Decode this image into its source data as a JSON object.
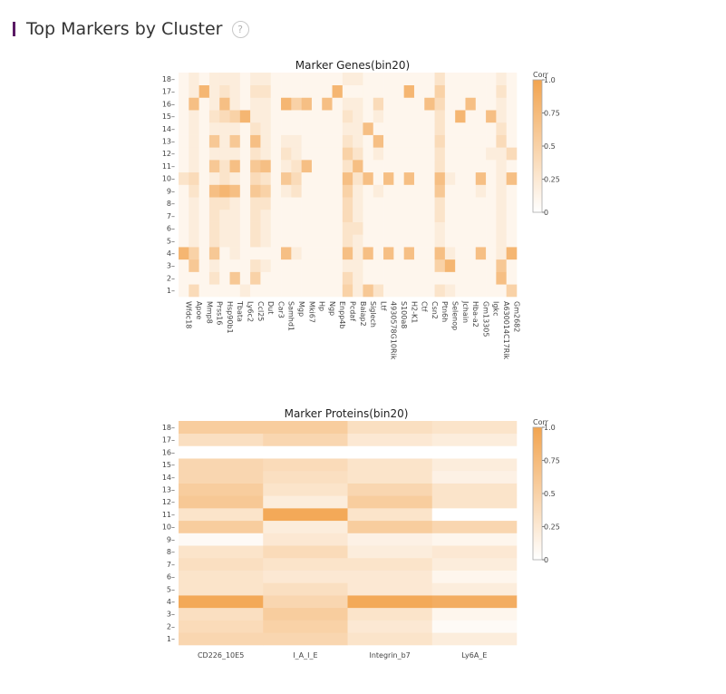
{
  "header": {
    "title": "Top Markers by Cluster",
    "help_glyph": "?"
  },
  "colors": {
    "low": "#ffffff",
    "high": "#f2a44f",
    "accent_bar": "#5a1a64"
  },
  "chart_data": [
    {
      "type": "heatmap",
      "title": "Marker Genes(bin20)",
      "colorbar_title": "Corr",
      "colorbar_ticks": [
        "0",
        "0.25",
        "0.5",
        "0.75",
        "1.0"
      ],
      "zrange": [
        0,
        1
      ],
      "y": [
        "1",
        "2",
        "3",
        "4",
        "5",
        "6",
        "7",
        "8",
        "9",
        "10",
        "11",
        "12",
        "13",
        "14",
        "15",
        "16",
        "17",
        "18"
      ],
      "x": [
        "Wfdc18",
        "Apoe",
        "Mmp8",
        "Prss16",
        "Hsp90b1",
        "Tbata",
        "Ly6c2",
        "Ccl25",
        "Dut",
        "Car3",
        "Samhd1",
        "Mgp",
        "Mki67",
        "Hp",
        "Ngp",
        "Enpp4b",
        "Pcdaf",
        "Baiap2",
        "Siglech",
        "Ltf",
        "4930578G10Rik",
        "S100a8",
        "H2-K1",
        "Ctf",
        "Csn2",
        "Ptn6h",
        "Selenop",
        "Jchain",
        "Hba-a2",
        "Gm13305",
        "Igkc",
        "A630014C17Rik",
        "Gm2682"
      ],
      "z": [
        [
          0.1,
          0.4,
          0.1,
          0.1,
          0.1,
          0.1,
          0.2,
          0.1,
          0.1,
          0.1,
          0.1,
          0.1,
          0.1,
          0.1,
          0.1,
          0.1,
          0.5,
          0.2,
          0.6,
          0.3,
          0.1,
          0.1,
          0.1,
          0.1,
          0.1,
          0.3,
          0.2,
          0.1,
          0.1,
          0.1,
          0.1,
          0.1,
          0.5
        ],
        [
          0.1,
          0.1,
          0.1,
          0.3,
          0.1,
          0.6,
          0.1,
          0.5,
          0.1,
          0.1,
          0.1,
          0.1,
          0.1,
          0.1,
          0.1,
          0.1,
          0.4,
          0.2,
          0.1,
          0.1,
          0.1,
          0.1,
          0.1,
          0.1,
          0.1,
          0.1,
          0.1,
          0.1,
          0.1,
          0.1,
          0.1,
          0.7,
          0.1
        ],
        [
          0.1,
          0.6,
          0.1,
          0.2,
          0.1,
          0.1,
          0.1,
          0.3,
          0.2,
          0.1,
          0.1,
          0.1,
          0.1,
          0.1,
          0.1,
          0.1,
          0.2,
          0.2,
          0.1,
          0.1,
          0.1,
          0.1,
          0.1,
          0.1,
          0.1,
          0.5,
          0.8,
          0.1,
          0.1,
          0.1,
          0.1,
          0.6,
          0.1
        ],
        [
          0.8,
          0.5,
          0.1,
          0.6,
          0.1,
          0.2,
          0.1,
          0.1,
          0.1,
          0.1,
          0.7,
          0.2,
          0.1,
          0.1,
          0.1,
          0.1,
          0.7,
          0.2,
          0.7,
          0.1,
          0.7,
          0.1,
          0.7,
          0.1,
          0.1,
          0.7,
          0.2,
          0.1,
          0.1,
          0.7,
          0.1,
          0.2,
          0.8
        ],
        [
          0.1,
          0.2,
          0.1,
          0.3,
          0.2,
          0.2,
          0.1,
          0.3,
          0.2,
          0.1,
          0.1,
          0.1,
          0.1,
          0.1,
          0.1,
          0.1,
          0.3,
          0.2,
          0.1,
          0.1,
          0.1,
          0.1,
          0.1,
          0.1,
          0.1,
          0.2,
          0.1,
          0.1,
          0.1,
          0.1,
          0.1,
          0.2,
          0.1
        ],
        [
          0.1,
          0.2,
          0.1,
          0.3,
          0.2,
          0.2,
          0.1,
          0.3,
          0.2,
          0.1,
          0.1,
          0.1,
          0.1,
          0.1,
          0.1,
          0.1,
          0.3,
          0.3,
          0.1,
          0.1,
          0.1,
          0.1,
          0.1,
          0.1,
          0.1,
          0.2,
          0.1,
          0.1,
          0.1,
          0.1,
          0.1,
          0.2,
          0.1
        ],
        [
          0.1,
          0.2,
          0.1,
          0.3,
          0.2,
          0.2,
          0.1,
          0.3,
          0.2,
          0.1,
          0.1,
          0.1,
          0.1,
          0.1,
          0.1,
          0.1,
          0.4,
          0.2,
          0.1,
          0.1,
          0.1,
          0.1,
          0.1,
          0.1,
          0.1,
          0.3,
          0.1,
          0.1,
          0.1,
          0.1,
          0.1,
          0.2,
          0.1
        ],
        [
          0.1,
          0.2,
          0.1,
          0.3,
          0.3,
          0.2,
          0.1,
          0.3,
          0.3,
          0.1,
          0.1,
          0.1,
          0.1,
          0.1,
          0.1,
          0.1,
          0.4,
          0.2,
          0.1,
          0.1,
          0.1,
          0.1,
          0.1,
          0.1,
          0.1,
          0.3,
          0.1,
          0.1,
          0.1,
          0.1,
          0.1,
          0.2,
          0.1
        ],
        [
          0.1,
          0.3,
          0.1,
          0.7,
          0.8,
          0.7,
          0.1,
          0.6,
          0.5,
          0.1,
          0.2,
          0.3,
          0.1,
          0.1,
          0.1,
          0.1,
          0.5,
          0.2,
          0.1,
          0.2,
          0.1,
          0.1,
          0.1,
          0.1,
          0.1,
          0.6,
          0.1,
          0.1,
          0.1,
          0.2,
          0.1,
          0.2,
          0.1
        ],
        [
          0.3,
          0.4,
          0.1,
          0.2,
          0.3,
          0.2,
          0.1,
          0.4,
          0.3,
          0.1,
          0.6,
          0.4,
          0.1,
          0.1,
          0.1,
          0.1,
          0.7,
          0.3,
          0.7,
          0.1,
          0.7,
          0.1,
          0.7,
          0.1,
          0.1,
          0.7,
          0.2,
          0.1,
          0.1,
          0.7,
          0.1,
          0.2,
          0.7
        ],
        [
          0.1,
          0.2,
          0.1,
          0.6,
          0.3,
          0.7,
          0.1,
          0.6,
          0.7,
          0.1,
          0.2,
          0.3,
          0.7,
          0.1,
          0.1,
          0.1,
          0.3,
          0.7,
          0.1,
          0.1,
          0.1,
          0.1,
          0.1,
          0.1,
          0.1,
          0.3,
          0.1,
          0.1,
          0.1,
          0.1,
          0.1,
          0.2,
          0.1
        ],
        [
          0.1,
          0.2,
          0.1,
          0.2,
          0.2,
          0.2,
          0.1,
          0.3,
          0.2,
          0.1,
          0.3,
          0.2,
          0.1,
          0.1,
          0.1,
          0.1,
          0.5,
          0.3,
          0.1,
          0.2,
          0.1,
          0.1,
          0.1,
          0.1,
          0.1,
          0.3,
          0.1,
          0.1,
          0.1,
          0.1,
          0.2,
          0.2,
          0.4
        ],
        [
          0.1,
          0.2,
          0.1,
          0.6,
          0.2,
          0.6,
          0.1,
          0.7,
          0.2,
          0.1,
          0.2,
          0.2,
          0.1,
          0.1,
          0.1,
          0.1,
          0.3,
          0.2,
          0.1,
          0.7,
          0.1,
          0.1,
          0.1,
          0.1,
          0.1,
          0.4,
          0.1,
          0.1,
          0.1,
          0.1,
          0.1,
          0.4,
          0.1
        ],
        [
          0.1,
          0.2,
          0.1,
          0.2,
          0.2,
          0.2,
          0.1,
          0.3,
          0.2,
          0.1,
          0.1,
          0.1,
          0.1,
          0.1,
          0.1,
          0.1,
          0.2,
          0.2,
          0.7,
          0.1,
          0.1,
          0.1,
          0.1,
          0.1,
          0.1,
          0.3,
          0.1,
          0.1,
          0.1,
          0.1,
          0.1,
          0.3,
          0.1
        ],
        [
          0.1,
          0.2,
          0.1,
          0.3,
          0.4,
          0.5,
          0.8,
          0.2,
          0.2,
          0.1,
          0.1,
          0.1,
          0.1,
          0.1,
          0.1,
          0.1,
          0.3,
          0.2,
          0.1,
          0.2,
          0.1,
          0.1,
          0.1,
          0.1,
          0.1,
          0.3,
          0.1,
          0.8,
          0.1,
          0.1,
          0.7,
          0.2,
          0.1
        ],
        [
          0.1,
          0.7,
          0.1,
          0.2,
          0.7,
          0.2,
          0.1,
          0.2,
          0.2,
          0.1,
          0.8,
          0.5,
          0.7,
          0.1,
          0.7,
          0.1,
          0.2,
          0.2,
          0.1,
          0.4,
          0.1,
          0.1,
          0.1,
          0.1,
          0.7,
          0.4,
          0.1,
          0.1,
          0.7,
          0.1,
          0.1,
          0.2,
          0.1
        ],
        [
          0.1,
          0.2,
          0.8,
          0.2,
          0.3,
          0.2,
          0.1,
          0.3,
          0.3,
          0.1,
          0.1,
          0.1,
          0.1,
          0.1,
          0.1,
          0.8,
          0.1,
          0.1,
          0.1,
          0.1,
          0.1,
          0.1,
          0.8,
          0.1,
          0.1,
          0.5,
          0.1,
          0.1,
          0.1,
          0.1,
          0.1,
          0.3,
          0.1
        ],
        [
          0.1,
          0.2,
          0.1,
          0.2,
          0.2,
          0.2,
          0.1,
          0.2,
          0.2,
          0.1,
          0.1,
          0.1,
          0.1,
          0.1,
          0.1,
          0.1,
          0.2,
          0.2,
          0.1,
          0.1,
          0.1,
          0.1,
          0.1,
          0.1,
          0.1,
          0.3,
          0.1,
          0.1,
          0.1,
          0.1,
          0.1,
          0.2,
          0.1
        ]
      ]
    },
    {
      "type": "heatmap",
      "title": "Marker Proteins(bin20)",
      "colorbar_title": "Corr",
      "colorbar_ticks": [
        "0",
        "0.25",
        "0.5",
        "0.75",
        "1.0"
      ],
      "zrange": [
        0,
        1
      ],
      "y": [
        "1",
        "2",
        "3",
        "4",
        "5",
        "6",
        "7",
        "8",
        "9",
        "10",
        "11",
        "12",
        "13",
        "14",
        "15",
        "16",
        "17",
        "18"
      ],
      "x": [
        "CD226_10E5",
        "I_A_I_E",
        "Integrin_b7",
        "Ly6A_E"
      ],
      "z": [
        [
          0.45,
          0.45,
          0.3,
          0.2
        ],
        [
          0.4,
          0.5,
          0.25,
          0.05
        ],
        [
          0.35,
          0.55,
          0.3,
          0.1
        ],
        [
          0.95,
          0.45,
          0.95,
          0.9
        ],
        [
          0.3,
          0.35,
          0.25,
          0.2
        ],
        [
          0.3,
          0.25,
          0.25,
          0.1
        ],
        [
          0.35,
          0.3,
          0.3,
          0.2
        ],
        [
          0.3,
          0.4,
          0.2,
          0.25
        ],
        [
          0.05,
          0.25,
          0.15,
          0.1
        ],
        [
          0.55,
          0.2,
          0.55,
          0.45
        ],
        [
          0.3,
          0.95,
          0.3,
          0.0
        ],
        [
          0.6,
          0.2,
          0.55,
          0.3
        ],
        [
          0.55,
          0.3,
          0.45,
          0.3
        ],
        [
          0.45,
          0.35,
          0.3,
          0.15
        ],
        [
          0.45,
          0.4,
          0.3,
          0.2
        ],
        [
          0.0,
          0.0,
          0.0,
          0.0
        ],
        [
          0.35,
          0.45,
          0.25,
          0.2
        ],
        [
          0.55,
          0.55,
          0.35,
          0.3
        ]
      ]
    }
  ]
}
